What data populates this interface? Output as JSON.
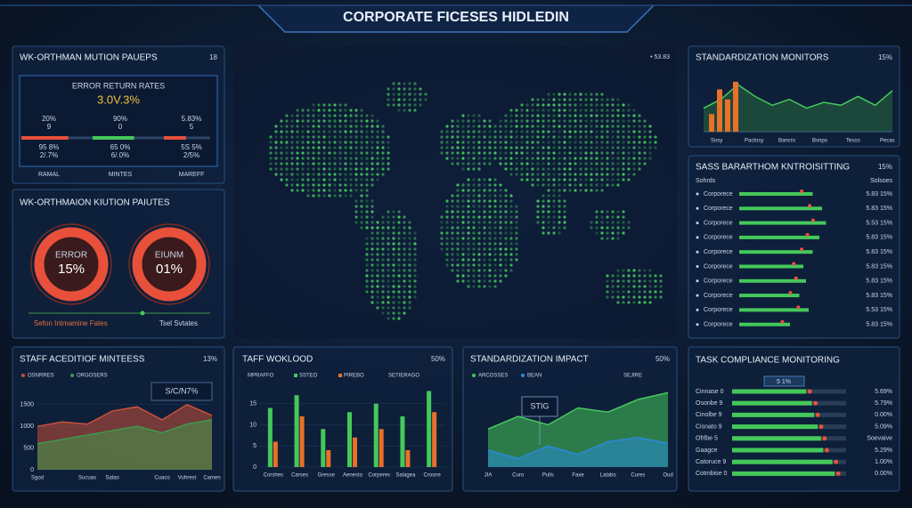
{
  "header": {
    "title": "CORPORATE FICESES HIDLEDIN"
  },
  "rates_panel": {
    "title": "WK-ORTHMAN MUTION PAUEPS",
    "badge": "18",
    "card_title": "ERROR RETURN RATES",
    "card_value": "3.0V.3%",
    "xlim": [
      0,
      100
    ],
    "columns": [
      {
        "top": "20%",
        "mid": "9",
        "sub": "95 8%",
        "sub2": "2/.7%",
        "label": "RAMAL",
        "fill": 85,
        "color": "#e8503a"
      },
      {
        "top": "90%",
        "mid": "0",
        "sub": "65 0%",
        "sub2": "6/.0%",
        "label": "MINTES",
        "fill": 75,
        "color": "#45c85a"
      },
      {
        "top": "5.83%",
        "mid": "5",
        "sub": "5S 5%",
        "sub2": "2/5%",
        "label": "MAREFF",
        "fill": 40,
        "color": "#e8503a"
      }
    ]
  },
  "donut_panel": {
    "title": "WK-ORTHMAION KIUTION PAIUTES",
    "donuts": [
      {
        "label": "ERROR",
        "value": "15%"
      },
      {
        "label": "EIUNM",
        "value": "01%"
      }
    ],
    "footer_left": "Sefon Intmamine Fates",
    "footer_right": "Tsel Svtates"
  },
  "map_panel": {
    "top_label": "• 53.83"
  },
  "monitors_panel": {
    "title": "STANDARDIZATION MONITORS",
    "badge": "15%",
    "ylim": [
      0,
      100
    ],
    "bars": [
      30,
      72,
      55,
      85
    ],
    "line": [
      40,
      55,
      80,
      60,
      45,
      55,
      40,
      50,
      45,
      60,
      45,
      70
    ],
    "x_labels": [
      "Sosy",
      "Pactosy",
      "Bancro",
      "Bsnpo",
      "Tesco",
      "Pecas"
    ]
  },
  "sass_panel": {
    "title": "SASS BARARTHOM KNTROISITTING",
    "badge": "15%",
    "head_left": "Sohrds",
    "head_right": "Solsoes",
    "xlim": [
      0,
      100
    ],
    "rows": [
      {
        "name": "Corporece",
        "value": 55,
        "stat": "5.83 15%"
      },
      {
        "name": "Corporece",
        "value": 62,
        "stat": "5.83 15%"
      },
      {
        "name": "Corporece",
        "value": 65,
        "stat": "5.53 15%"
      },
      {
        "name": "Corporece",
        "value": 60,
        "stat": "5.83 15%"
      },
      {
        "name": "Corporece",
        "value": 55,
        "stat": "5.83 15%"
      },
      {
        "name": "Corporece",
        "value": 48,
        "stat": "5.83 15%"
      },
      {
        "name": "Corporece",
        "value": 50,
        "stat": "5.83 15%"
      },
      {
        "name": "Corporece",
        "value": 45,
        "stat": "5.83 15%"
      },
      {
        "name": "Corporece",
        "value": 52,
        "stat": "5.53 15%"
      },
      {
        "name": "Corporece",
        "value": 38,
        "stat": "5.83 15%"
      }
    ]
  },
  "staff_panel": {
    "title": "STAFF ACEDITIOF MINTEESS",
    "badge": "13%",
    "annotation": "S/C/N7%",
    "ylim": [
      0,
      1700
    ],
    "yticks": [
      0,
      500,
      1000,
      1500
    ],
    "categories": [
      "Sgod",
      null,
      "Sucuas",
      "Salao",
      null,
      "Cuaco",
      "Vuhrest",
      "Camen"
    ],
    "series": [
      {
        "name": "OSNRRES",
        "color": "#c8503a",
        "values": [
          1000,
          1100,
          1050,
          1350,
          1450,
          1150,
          1500,
          1250
        ]
      },
      {
        "name": "ORGOSERS",
        "color": "#3f9a4a",
        "values": [
          600,
          700,
          800,
          900,
          1000,
          850,
          1050,
          1150
        ]
      }
    ]
  },
  "workload_panel": {
    "title": "TAFF WOKLOOD",
    "badge": "50%",
    "legend_extra": [
      "MPRAFFO",
      "SETIERAGO"
    ],
    "ylim": [
      0,
      20
    ],
    "yticks": [
      0,
      5,
      10,
      15
    ],
    "categories": [
      "Corshes",
      "Carses",
      "Gresse",
      "Aenesto",
      "Corperes",
      "Salagea",
      "Crosne"
    ],
    "series": [
      {
        "name": "SSTEO",
        "color": "#45c85a",
        "values": [
          14,
          17,
          9,
          13,
          15,
          12,
          18
        ]
      },
      {
        "name": "PIREBO",
        "color": "#e8702a",
        "values": [
          6,
          12,
          4,
          7,
          9,
          4,
          13
        ]
      }
    ]
  },
  "impact_panel": {
    "title": "STANDARDIZATION IMPACT",
    "badge": "50%",
    "annotation": "STIG",
    "legend_extra": "SEJIRE",
    "ylim": [
      0,
      100
    ],
    "categories": [
      "JIA",
      "Curo",
      "Pulls",
      "Faxe",
      "Lalabo",
      "Cures",
      "Oud"
    ],
    "series": [
      {
        "name": "ARCOSSES",
        "color": "#45c85a",
        "values": [
          45,
          60,
          50,
          70,
          65,
          80,
          88
        ]
      },
      {
        "name": "BEAN",
        "color": "#2a8ad8",
        "values": [
          20,
          10,
          25,
          15,
          30,
          35,
          28
        ]
      }
    ]
  },
  "task_panel": {
    "title": "TASK COMPLIANCE MONITORING",
    "chip": "5 1%",
    "xlim": [
      0,
      100
    ],
    "rows": [
      {
        "name": "Cinnase 0",
        "value": 65,
        "note": "5.69%"
      },
      {
        "name": "Osonbe 9",
        "value": 70,
        "note": "5.79%"
      },
      {
        "name": "Cinolbe 9",
        "value": 72,
        "note": "0.00%"
      },
      {
        "name": "Cisnato 9",
        "value": 75,
        "note": "5.09%"
      },
      {
        "name": "Ofrlbe 5",
        "value": 78,
        "note": "Soevaive"
      },
      {
        "name": "Gaagce",
        "value": 80,
        "note": "5.29%"
      },
      {
        "name": "Catoruce 9",
        "value": 88,
        "note": "1.00%"
      },
      {
        "name": "Cotmbise 0",
        "value": 90,
        "note": "0.00%"
      }
    ]
  }
}
